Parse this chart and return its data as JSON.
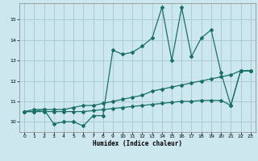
{
  "xlabel": "Humidex (Indice chaleur)",
  "bg_color": "#cce8ee",
  "grid_color": "#aaccd4",
  "line_color": "#1a7068",
  "xlim": [
    -0.5,
    23.5
  ],
  "ylim": [
    9.5,
    15.8
  ],
  "xticks": [
    0,
    1,
    2,
    3,
    4,
    5,
    6,
    7,
    8,
    9,
    10,
    11,
    12,
    13,
    14,
    15,
    16,
    17,
    18,
    19,
    20,
    21,
    22,
    23
  ],
  "yticks": [
    10,
    11,
    12,
    13,
    14,
    15
  ],
  "line1_x": [
    0,
    1,
    2,
    3,
    4,
    5,
    6,
    7,
    8,
    9,
    10,
    11,
    12,
    13,
    14,
    15,
    16,
    17,
    18,
    19,
    20,
    21,
    22,
    23
  ],
  "line1_y": [
    10.5,
    10.6,
    10.6,
    9.9,
    10.0,
    10.0,
    9.8,
    10.3,
    10.3,
    13.5,
    13.3,
    13.4,
    13.7,
    14.1,
    15.6,
    13.0,
    15.6,
    13.2,
    14.1,
    14.5,
    12.4,
    10.8,
    12.5,
    12.5
  ],
  "line2_x": [
    0,
    1,
    2,
    3,
    4,
    5,
    6,
    7,
    8,
    9,
    10,
    11,
    12,
    13,
    14,
    15,
    16,
    17,
    18,
    19,
    20,
    21,
    22,
    23
  ],
  "line2_y": [
    10.5,
    10.5,
    10.6,
    10.6,
    10.6,
    10.7,
    10.8,
    10.8,
    10.9,
    11.0,
    11.1,
    11.2,
    11.3,
    11.5,
    11.6,
    11.7,
    11.8,
    11.9,
    12.0,
    12.1,
    12.2,
    12.3,
    12.5,
    12.5
  ],
  "line3_x": [
    0,
    1,
    2,
    3,
    4,
    5,
    6,
    7,
    8,
    9,
    10,
    11,
    12,
    13,
    14,
    15,
    16,
    17,
    18,
    19,
    20,
    21,
    22,
    23
  ],
  "line3_y": [
    10.5,
    10.5,
    10.5,
    10.5,
    10.5,
    10.5,
    10.5,
    10.55,
    10.6,
    10.65,
    10.7,
    10.75,
    10.8,
    10.85,
    10.9,
    10.95,
    11.0,
    11.0,
    11.05,
    11.05,
    11.05,
    10.8,
    12.5,
    12.5
  ]
}
